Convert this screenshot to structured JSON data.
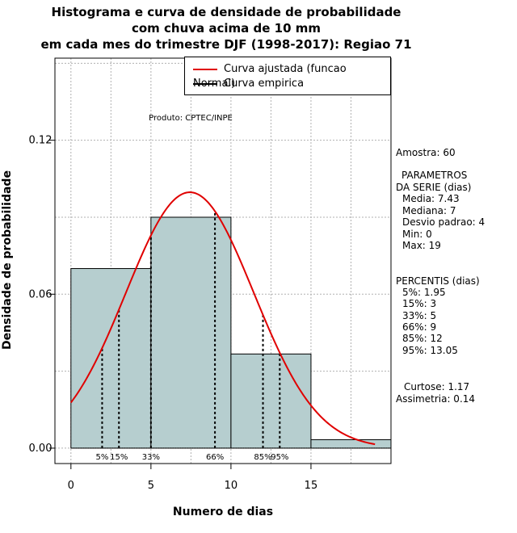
{
  "title_lines": [
    "Histograma e curva de densidade de probabilidade",
    "com chuva acima de 10 mm",
    "em cada mes do trimestre DJF (1998-2017): Regiao 71"
  ],
  "product_note": "Produto: CPTEC/INPE",
  "legend": {
    "fitted": "Curva ajustada (funcao Normal)",
    "empirical": "Curva empirica"
  },
  "stats": {
    "sample": "Amostra: 60",
    "params_title_1": "PARAMETROS",
    "params_title_2": "DA SERIE (dias)",
    "mean": "Media: 7.43",
    "median": "Mediana: 7",
    "sd": "Desvio padrao: 4",
    "min": "Min: 0",
    "max": "Max: 19",
    "perc_title": "PERCENTIS (dias)",
    "p5": "5%: 1.95",
    "p15": "15%: 3",
    "p33": "33%: 5",
    "p66": "66%: 9",
    "p85": "85%: 12",
    "p95": "95%: 13.05",
    "kurtosis": "Curtose: 1.17",
    "skewness": "Assimetria: 0.14"
  },
  "colors": {
    "bar_fill": "#b6cecf",
    "fitted_curve": "#e00000",
    "empirical_curve": "#000000",
    "grid": "#b0b0b0"
  },
  "chart_data": {
    "type": "bar",
    "xlabel": "Numero de dias",
    "ylabel": "Densidade de probabilidade",
    "xlim": [
      -1,
      20
    ],
    "ylim": [
      -0.006,
      0.152
    ],
    "xticks": [
      0,
      5,
      10,
      15
    ],
    "yticks": [
      0.0,
      0.06,
      0.12
    ],
    "ytick_labels": [
      "0.00",
      "0.06",
      "0.12"
    ],
    "grid": true,
    "bins": [
      {
        "from": 0,
        "to": 5,
        "density": 0.07
      },
      {
        "from": 5,
        "to": 10,
        "density": 0.09
      },
      {
        "from": 10,
        "to": 15,
        "density": 0.0367
      },
      {
        "from": 15,
        "to": 20,
        "density": 0.0033
      }
    ],
    "normal_fit": {
      "mean": 7.43,
      "sd": 4,
      "x_range": [
        0,
        19
      ]
    },
    "percentiles": [
      {
        "label": "5%",
        "x": 1.95
      },
      {
        "label": "15%",
        "x": 3
      },
      {
        "label": "33%",
        "x": 5
      },
      {
        "label": "66%",
        "x": 9
      },
      {
        "label": "85%",
        "x": 12
      },
      {
        "label": "95%",
        "x": 13.05
      }
    ]
  }
}
